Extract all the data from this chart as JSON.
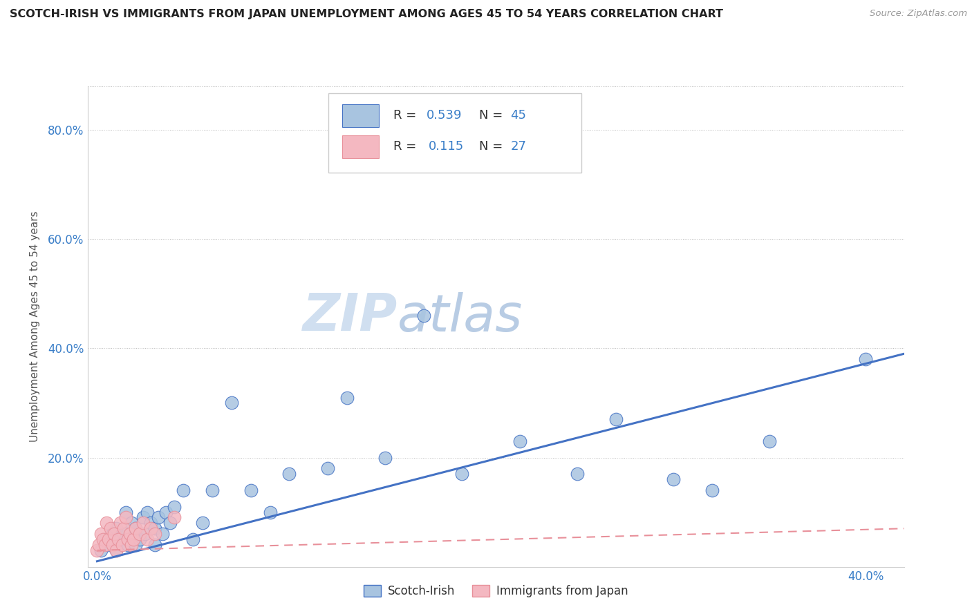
{
  "title": "SCOTCH-IRISH VS IMMIGRANTS FROM JAPAN UNEMPLOYMENT AMONG AGES 45 TO 54 YEARS CORRELATION CHART",
  "source": "Source: ZipAtlas.com",
  "ylabel": "Unemployment Among Ages 45 to 54 years",
  "ylim": [
    0.0,
    0.88
  ],
  "xlim": [
    -0.005,
    0.42
  ],
  "yticks": [
    0.0,
    0.2,
    0.4,
    0.6,
    0.8
  ],
  "ytick_labels": [
    "",
    "20.0%",
    "40.0%",
    "60.0%",
    "80.0%"
  ],
  "blue_color": "#a8c4e0",
  "pink_color": "#f4b8c1",
  "blue_line_color": "#4472c4",
  "pink_line_color": "#e8909a",
  "watermark_zip": "ZIP",
  "watermark_atlas": "atlas",
  "scotch_irish_x": [
    0.002,
    0.004,
    0.006,
    0.008,
    0.01,
    0.01,
    0.012,
    0.014,
    0.015,
    0.016,
    0.018,
    0.02,
    0.02,
    0.022,
    0.024,
    0.025,
    0.026,
    0.028,
    0.03,
    0.03,
    0.032,
    0.034,
    0.036,
    0.038,
    0.04,
    0.045,
    0.05,
    0.055,
    0.06,
    0.07,
    0.08,
    0.09,
    0.1,
    0.12,
    0.13,
    0.15,
    0.17,
    0.19,
    0.22,
    0.25,
    0.27,
    0.3,
    0.32,
    0.35,
    0.4
  ],
  "scotch_irish_y": [
    0.03,
    0.05,
    0.04,
    0.06,
    0.03,
    0.07,
    0.05,
    0.06,
    0.1,
    0.04,
    0.08,
    0.04,
    0.07,
    0.05,
    0.09,
    0.06,
    0.1,
    0.08,
    0.07,
    0.04,
    0.09,
    0.06,
    0.1,
    0.08,
    0.11,
    0.14,
    0.05,
    0.08,
    0.14,
    0.3,
    0.14,
    0.1,
    0.17,
    0.18,
    0.31,
    0.2,
    0.46,
    0.17,
    0.23,
    0.17,
    0.27,
    0.16,
    0.14,
    0.23,
    0.38
  ],
  "japan_x": [
    0.0,
    0.001,
    0.002,
    0.003,
    0.004,
    0.005,
    0.006,
    0.007,
    0.008,
    0.009,
    0.01,
    0.011,
    0.012,
    0.013,
    0.014,
    0.015,
    0.016,
    0.017,
    0.018,
    0.019,
    0.02,
    0.022,
    0.024,
    0.026,
    0.028,
    0.03,
    0.04
  ],
  "japan_y": [
    0.03,
    0.04,
    0.06,
    0.05,
    0.04,
    0.08,
    0.05,
    0.07,
    0.04,
    0.06,
    0.03,
    0.05,
    0.08,
    0.04,
    0.07,
    0.09,
    0.05,
    0.06,
    0.04,
    0.05,
    0.07,
    0.06,
    0.08,
    0.05,
    0.07,
    0.06,
    0.09
  ],
  "blue_line_x0": 0.0,
  "blue_line_x1": 0.42,
  "blue_line_y0": 0.01,
  "blue_line_y1": 0.39,
  "pink_line_x0": 0.0,
  "pink_line_x1": 0.42,
  "pink_line_y0": 0.03,
  "pink_line_y1": 0.07
}
